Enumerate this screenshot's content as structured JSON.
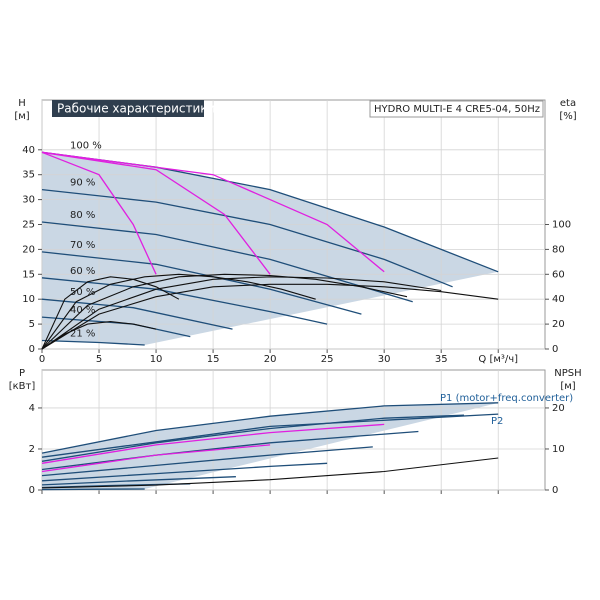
{
  "chart_data": [
    {
      "type": "line",
      "title": "Рабочие характеристики",
      "subtitle": "HYDRO MULTI-E 4 CRE5-04, 50Hz",
      "ylabel": "H",
      "yunit": "[м]",
      "y2label": "eta",
      "y2unit": "[%]",
      "show_xtick_labels": true,
      "xlim": [
        0,
        44.1
      ],
      "ylim": [
        0,
        50
      ],
      "y2lim": [
        0,
        200
      ],
      "xticks": [
        0,
        5,
        10,
        15,
        20,
        25,
        30,
        35,
        {
          "value": 40,
          "label": "Q [м³/ч]"
        }
      ],
      "yticks": [
        0,
        5,
        10,
        15,
        20,
        25,
        30,
        35,
        40
      ],
      "y2ticks": [
        0,
        20,
        40,
        60,
        80,
        100
      ],
      "grid": true,
      "series": [
        {
          "name": "100 %",
          "color": "#1f4e79",
          "x": [
            0,
            10,
            20,
            30,
            40
          ],
          "values": [
            39.5,
            36.5,
            32,
            24.5,
            15.5
          ]
        },
        {
          "name": "90 %",
          "color": "#1f4e79",
          "x": [
            0,
            10,
            20,
            30,
            36
          ],
          "values": [
            32,
            29.5,
            25,
            18,
            12.5
          ]
        },
        {
          "name": "80 %",
          "color": "#1f4e79",
          "x": [
            0,
            10,
            20,
            32.5
          ],
          "values": [
            25.5,
            23,
            18,
            9.5
          ]
        },
        {
          "name": "70 %",
          "color": "#1f4e79",
          "x": [
            0,
            10,
            20,
            28
          ],
          "values": [
            19.5,
            17,
            12,
            7
          ]
        },
        {
          "name": "60 %",
          "color": "#1f4e79",
          "x": [
            0,
            10,
            20,
            25
          ],
          "values": [
            14.3,
            12,
            7.5,
            5
          ]
        },
        {
          "name": "50 %",
          "color": "#1f4e79",
          "x": [
            0,
            8,
            16.7
          ],
          "values": [
            10,
            8.3,
            4
          ]
        },
        {
          "name": "40 %",
          "color": "#1f4e79",
          "x": [
            0,
            8,
            13
          ],
          "values": [
            6.4,
            5,
            2.5
          ]
        },
        {
          "name": "21 %",
          "color": "#1f4e79",
          "x": [
            0,
            5,
            9
          ],
          "values": [
            1.7,
            1.3,
            0.8
          ]
        },
        {
          "color": "#e020e0",
          "x": [
            0,
            5,
            8,
            10
          ],
          "values": [
            39.5,
            35,
            25,
            15
          ]
        },
        {
          "color": "#e020e0",
          "x": [
            0,
            10,
            16,
            20
          ],
          "values": [
            39.5,
            36,
            27,
            15
          ]
        },
        {
          "color": "#e020e0",
          "x": [
            0,
            15,
            25,
            30
          ],
          "values": [
            39.5,
            35,
            25,
            15.5
          ]
        },
        {
          "color": "#111111",
          "axis": "y2",
          "x": [
            0,
            5,
            10,
            15,
            20,
            25,
            30,
            35,
            40
          ],
          "values": [
            0,
            28,
            42,
            50,
            52,
            52,
            50,
            46,
            40
          ]
        },
        {
          "color": "#111111",
          "axis": "y2",
          "x": [
            0,
            5,
            10,
            15,
            20,
            25,
            30,
            35
          ],
          "values": [
            0,
            32,
            48,
            56,
            58,
            57,
            54,
            47
          ]
        },
        {
          "color": "#111111",
          "axis": "y2",
          "x": [
            0,
            4,
            8,
            12,
            16,
            20,
            24,
            28,
            32
          ],
          "values": [
            0,
            35,
            50,
            58,
            60,
            59,
            56,
            50,
            42
          ]
        },
        {
          "color": "#111111",
          "axis": "y2",
          "x": [
            0,
            3,
            6,
            9,
            12,
            15,
            18,
            21,
            24
          ],
          "values": [
            0,
            38,
            52,
            58,
            60,
            58,
            54,
            48,
            40
          ]
        },
        {
          "color": "#111111",
          "axis": "y2",
          "x": [
            0,
            2,
            4,
            6,
            8,
            10,
            12
          ],
          "values": [
            0,
            40,
            54,
            58,
            56,
            50,
            40
          ]
        },
        {
          "color": "#111111",
          "axis": "y2",
          "x": [
            0,
            2,
            4,
            6,
            8,
            10
          ],
          "values": [
            0,
            12,
            20,
            22,
            20,
            16
          ]
        }
      ]
    },
    {
      "type": "line",
      "ylabel": "P",
      "yunit": "[кВт]",
      "y2label": "NPSH",
      "y2unit": "[м]",
      "show_xtick_labels": false,
      "annotations": [
        "P1 (motor+freq.converter)",
        "P2"
      ],
      "xlim": [
        0,
        44.1
      ],
      "ylim": [
        0,
        5.85
      ],
      "y2lim": [
        0,
        29.25
      ],
      "xticks": [
        0,
        5,
        10,
        15,
        20,
        25,
        30,
        35,
        40
      ],
      "yticks": [
        0,
        2,
        4
      ],
      "y2ticks": [
        0,
        10,
        20
      ],
      "grid": true,
      "series": [
        {
          "color": "#1f4e79",
          "x": [
            0,
            10,
            20,
            30,
            40
          ],
          "values": [
            1.8,
            2.9,
            3.6,
            4.1,
            4.25
          ]
        },
        {
          "color": "#1f4e79",
          "x": [
            0,
            10,
            20,
            30,
            37
          ],
          "values": [
            1.4,
            2.3,
            3.0,
            3.5,
            3.65
          ]
        },
        {
          "color": "#1f4e79",
          "x": [
            0,
            10,
            20,
            33
          ],
          "values": [
            1.0,
            1.7,
            2.3,
            2.85
          ]
        },
        {
          "color": "#1f4e79",
          "x": [
            0,
            10,
            20,
            29
          ],
          "values": [
            0.7,
            1.2,
            1.7,
            2.1
          ]
        },
        {
          "color": "#1f4e79",
          "x": [
            0,
            10,
            20,
            25
          ],
          "values": [
            0.45,
            0.8,
            1.15,
            1.3
          ]
        },
        {
          "color": "#1f4e79",
          "x": [
            0,
            8,
            17
          ],
          "values": [
            0.25,
            0.45,
            0.65
          ]
        },
        {
          "color": "#1f4e79",
          "x": [
            0,
            6,
            13
          ],
          "values": [
            0.12,
            0.22,
            0.3
          ]
        },
        {
          "color": "#1f4e79",
          "x": [
            0,
            5,
            9
          ],
          "values": [
            0.02,
            0.04,
            0.05
          ]
        },
        {
          "color": "#1f4e79",
          "x": [
            0,
            20,
            40
          ],
          "values": [
            1.6,
            3.1,
            3.7
          ]
        },
        {
          "color": "#e020e0",
          "x": [
            0,
            10,
            20,
            30
          ],
          "values": [
            1.3,
            2.2,
            2.8,
            3.2
          ]
        },
        {
          "color": "#e020e0",
          "x": [
            0,
            5,
            10,
            20
          ],
          "values": [
            0.9,
            1.3,
            1.7,
            2.2
          ]
        },
        {
          "color": "#111111",
          "axis": "y2",
          "x": [
            0,
            10,
            20,
            30,
            40
          ],
          "values": [
            0.5,
            1.2,
            2.5,
            4.5,
            7.8
          ]
        }
      ]
    }
  ]
}
